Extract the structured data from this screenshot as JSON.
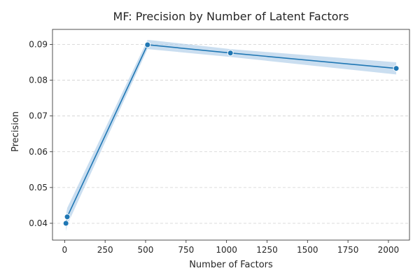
{
  "chart_data": {
    "type": "line",
    "title": "MF: Precision by Number of Latent Factors",
    "xlabel": "Number of Factors",
    "ylabel": "Precision",
    "xlim": [
      -75,
      2130
    ],
    "ylim": [
      0.0353,
      0.0942
    ],
    "xticks": [
      0,
      250,
      500,
      750,
      1000,
      1250,
      1500,
      1750,
      2000
    ],
    "yticks": [
      0.04,
      0.05,
      0.06,
      0.07,
      0.08,
      0.09
    ],
    "xtick_labels": [
      "0",
      "250",
      "500",
      "750",
      "1000",
      "1250",
      "1500",
      "1750",
      "2000"
    ],
    "ytick_labels": [
      "0.04",
      "0.05",
      "0.06",
      "0.07",
      "0.08",
      "0.09"
    ],
    "grid": "y-dashed",
    "legend": "none",
    "colors": {
      "line": "#1f77b4",
      "band": "#aecde8",
      "grid": "#d0d0d0",
      "axis": "#262626"
    },
    "series": [
      {
        "x": [
          8,
          16,
          512,
          1024,
          2048
        ],
        "y": [
          0.04,
          0.0418,
          0.0899,
          0.0876,
          0.0833
        ],
        "ci_low": [
          0.0378,
          0.0395,
          0.0887,
          0.0865,
          0.0816
        ],
        "ci_high": [
          0.0422,
          0.0443,
          0.0913,
          0.0887,
          0.085
        ]
      }
    ]
  }
}
